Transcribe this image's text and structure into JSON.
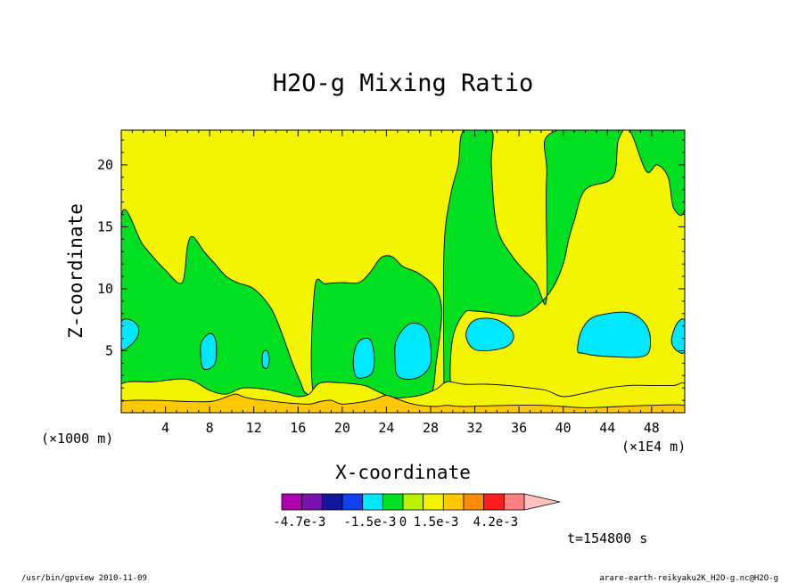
{
  "chart_data": {
    "type": "contour",
    "title": "H2O-g Mixing Ratio",
    "xlabel": "X-coordinate",
    "ylabel": "Z-coordinate",
    "x_scale_note": "(×1E4 m)",
    "y_scale_note": "(×1000 m)",
    "xlim": [
      0,
      51
    ],
    "ylim": [
      0,
      22.8
    ],
    "x_ticks": [
      4,
      8,
      12,
      16,
      20,
      24,
      28,
      32,
      36,
      40,
      44,
      48
    ],
    "y_ticks": [
      5,
      10,
      15,
      20
    ],
    "time_label": "t=154800 s",
    "colorbar": {
      "colors": [
        "#b000b0",
        "#7a10b0",
        "#14149c",
        "#1040f0",
        "#00e8ff",
        "#00e020",
        "#b8f200",
        "#f4f400",
        "#ffc800",
        "#ff8c00",
        "#ff1e1e",
        "#ff8080",
        "#ffc0c0"
      ],
      "tick_labels": [
        "-4.7e-3",
        "-1.5e-3",
        "0",
        "1.5e-3",
        "4.2e-3"
      ],
      "tick_values": [
        -0.0047,
        -0.0015,
        0,
        0.0015,
        0.0042
      ],
      "range": [
        -0.0055,
        0.0055
      ]
    },
    "levels": {
      "green": "#00e020",
      "yellow": "#f4f400",
      "cyan": "#00e8ff",
      "orange": "#ffc800"
    },
    "regions": [
      {
        "level": "green",
        "points": [
          [
            0,
            1.5
          ],
          [
            0,
            15.8
          ],
          [
            2,
            13.5
          ],
          [
            4,
            11.5
          ],
          [
            5.5,
            10.5
          ],
          [
            6,
            13.5
          ],
          [
            6.5,
            14.2
          ],
          [
            7.5,
            13
          ],
          [
            8.5,
            12
          ],
          [
            9.5,
            11
          ],
          [
            10.5,
            10.5
          ],
          [
            12,
            10
          ],
          [
            13.5,
            8.5
          ],
          [
            14.5,
            6.5
          ],
          [
            15.5,
            4
          ],
          [
            16.5,
            1.8
          ],
          [
            16.5,
            0.8
          ],
          [
            0,
            0.8
          ]
        ]
      },
      {
        "level": "green",
        "points": [
          [
            17.5,
            1.2
          ],
          [
            17.5,
            10
          ],
          [
            18.5,
            10.4
          ],
          [
            20,
            10.5
          ],
          [
            21.5,
            10.5
          ],
          [
            22.5,
            11.3
          ],
          [
            23.5,
            12.5
          ],
          [
            24.5,
            12.6
          ],
          [
            25.5,
            11.8
          ],
          [
            27,
            11.2
          ],
          [
            28.5,
            10
          ],
          [
            29,
            8
          ],
          [
            28.5,
            4
          ],
          [
            28,
            1.5
          ],
          [
            26,
            1.1
          ],
          [
            21,
            1
          ]
        ]
      },
      {
        "level": "green",
        "points": [
          [
            29.2,
            1.5
          ],
          [
            29.2,
            13
          ],
          [
            29.8,
            17.5
          ],
          [
            30.5,
            20
          ],
          [
            31,
            22.8
          ],
          [
            33.5,
            22.8
          ],
          [
            33.5,
            20
          ],
          [
            34,
            15
          ],
          [
            35.5,
            12.5
          ],
          [
            37.5,
            10.5
          ],
          [
            38.5,
            9.2
          ],
          [
            38.5,
            19
          ],
          [
            39.5,
            22.8
          ],
          [
            51,
            22.8
          ],
          [
            51,
            16.5
          ],
          [
            50,
            16.5
          ],
          [
            49.5,
            19
          ],
          [
            48.5,
            20
          ],
          [
            47.5,
            19.5
          ],
          [
            46,
            22.8
          ],
          [
            45,
            22
          ],
          [
            44.5,
            19
          ],
          [
            42,
            18
          ],
          [
            41,
            15.5
          ],
          [
            40.5,
            14
          ],
          [
            40,
            12
          ],
          [
            39,
            10
          ],
          [
            37.5,
            8.5
          ],
          [
            36,
            7.8
          ],
          [
            34,
            8
          ],
          [
            32,
            8.2
          ],
          [
            31,
            8
          ],
          [
            30,
            6
          ],
          [
            29.8,
            2.5
          ],
          [
            30.5,
            1.8
          ],
          [
            34,
            1.3
          ],
          [
            40,
            1.1
          ],
          [
            45,
            1.3
          ],
          [
            48,
            1.4
          ],
          [
            51,
            1.5
          ],
          [
            51,
            0.8
          ],
          [
            29.2,
            0.8
          ]
        ]
      },
      {
        "level": "yellow",
        "points": [
          [
            0,
            0.2
          ],
          [
            0,
            2.3
          ],
          [
            3,
            2.5
          ],
          [
            6,
            2.7
          ],
          [
            8,
            1.8
          ],
          [
            9.5,
            1.5
          ],
          [
            11,
            2
          ],
          [
            13,
            1.9
          ],
          [
            15,
            1.5
          ],
          [
            16,
            1.3
          ],
          [
            17,
            1.5
          ],
          [
            18,
            2.4
          ],
          [
            20,
            2.4
          ],
          [
            22,
            2.2
          ],
          [
            23,
            1.8
          ],
          [
            24,
            1.4
          ],
          [
            25,
            1.2
          ],
          [
            27,
            1.4
          ],
          [
            28.5,
            1.9
          ],
          [
            29.5,
            2.5
          ],
          [
            31,
            2.3
          ],
          [
            33,
            2.3
          ],
          [
            35,
            2.2
          ],
          [
            37,
            2
          ],
          [
            38.5,
            1.8
          ],
          [
            40,
            1.3
          ],
          [
            42,
            1.6
          ],
          [
            44,
            2
          ],
          [
            46,
            2.2
          ],
          [
            48,
            2.2
          ],
          [
            50,
            2.2
          ],
          [
            51,
            2.3
          ],
          [
            51,
            0.2
          ]
        ]
      },
      {
        "level": "orange",
        "points": [
          [
            0,
            0
          ],
          [
            0,
            0.9
          ],
          [
            3,
            1
          ],
          [
            6,
            0.9
          ],
          [
            8,
            0.9
          ],
          [
            9,
            1.1
          ],
          [
            10.3,
            1.5
          ],
          [
            11,
            1.3
          ],
          [
            12,
            1.1
          ],
          [
            13,
            1
          ],
          [
            15,
            0.8
          ],
          [
            17,
            0.7
          ],
          [
            18,
            0.9
          ],
          [
            19,
            1
          ],
          [
            20,
            0.7
          ],
          [
            22,
            0.9
          ],
          [
            23,
            1.1
          ],
          [
            24,
            1.4
          ],
          [
            25,
            1.1
          ],
          [
            26,
            0.8
          ],
          [
            27,
            0.6
          ],
          [
            28.5,
            0.5
          ],
          [
            29.5,
            0.6
          ],
          [
            31,
            0.5
          ],
          [
            35,
            0.6
          ],
          [
            38,
            0.6
          ],
          [
            40,
            0.5
          ],
          [
            42,
            0.4
          ],
          [
            45,
            0.5
          ],
          [
            48,
            0.6
          ],
          [
            51,
            0.6
          ],
          [
            51,
            0
          ]
        ]
      },
      {
        "level": "cyan",
        "points": [
          [
            0,
            5.2
          ],
          [
            0.8,
            5.4
          ],
          [
            1.5,
            6.2
          ],
          [
            1.5,
            7
          ],
          [
            0.8,
            7.5
          ],
          [
            0,
            7.3
          ]
        ]
      },
      {
        "level": "cyan",
        "points": [
          [
            7.3,
            3.8
          ],
          [
            7.8,
            3.5
          ],
          [
            8.5,
            4
          ],
          [
            8.6,
            5.5
          ],
          [
            8.3,
            6.3
          ],
          [
            7.8,
            6.3
          ],
          [
            7.2,
            5.5
          ]
        ]
      },
      {
        "level": "cyan",
        "points": [
          [
            12.8,
            3.8
          ],
          [
            13.2,
            3.6
          ],
          [
            13.4,
            4.3
          ],
          [
            13.2,
            5
          ],
          [
            12.8,
            4.8
          ]
        ]
      },
      {
        "level": "cyan",
        "points": [
          [
            21.2,
            3
          ],
          [
            21.8,
            2.8
          ],
          [
            22.7,
            3.2
          ],
          [
            22.9,
            4.5
          ],
          [
            22.6,
            5.8
          ],
          [
            22,
            6
          ],
          [
            21.3,
            5.5
          ],
          [
            21,
            4.2
          ]
        ]
      },
      {
        "level": "cyan",
        "points": [
          [
            25,
            3
          ],
          [
            26,
            2.7
          ],
          [
            27.2,
            3
          ],
          [
            28,
            4
          ],
          [
            27.9,
            6
          ],
          [
            27.3,
            7
          ],
          [
            26.2,
            7.2
          ],
          [
            25.3,
            6.5
          ],
          [
            24.8,
            5.5
          ],
          [
            24.8,
            4
          ]
        ]
      },
      {
        "level": "cyan",
        "points": [
          [
            31.2,
            6.2
          ],
          [
            31.6,
            7.2
          ],
          [
            32.5,
            7.6
          ],
          [
            34,
            7.5
          ],
          [
            35.2,
            6.8
          ],
          [
            35.5,
            6
          ],
          [
            34.8,
            5.3
          ],
          [
            33,
            5
          ],
          [
            31.8,
            5.2
          ]
        ]
      },
      {
        "level": "cyan",
        "points": [
          [
            41.3,
            5
          ],
          [
            41.6,
            6.5
          ],
          [
            42.5,
            7.6
          ],
          [
            44,
            8
          ],
          [
            45.8,
            8.1
          ],
          [
            47,
            7.6
          ],
          [
            47.8,
            6.5
          ],
          [
            47.8,
            5
          ],
          [
            47,
            4.5
          ],
          [
            45,
            4.5
          ],
          [
            43,
            4.6
          ],
          [
            41.8,
            4.8
          ]
        ]
      },
      {
        "level": "cyan",
        "points": [
          [
            49.8,
            5.8
          ],
          [
            50.3,
            7.2
          ],
          [
            51,
            7.4
          ],
          [
            51,
            5
          ],
          [
            50.3,
            5
          ]
        ]
      }
    ]
  },
  "footer": {
    "left": "/usr/bin/gpview  2010-11-09",
    "right": "arare-earth-reikyaku2K_H2O-g.nc@H2O-g"
  }
}
